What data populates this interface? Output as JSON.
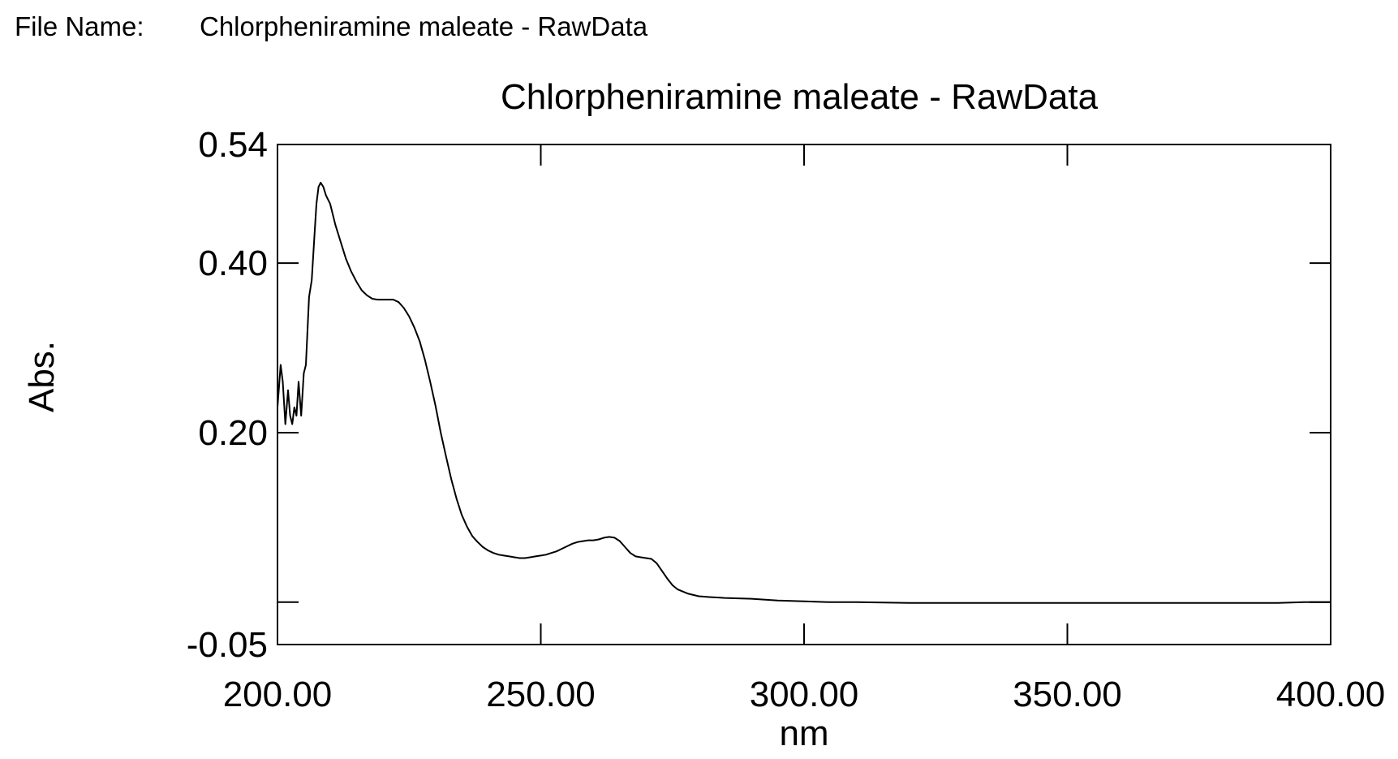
{
  "header": {
    "file_name_label": "File Name:",
    "file_name_value": "Chlorpheniramine maleate - RawData"
  },
  "chart_data": {
    "type": "line",
    "title": "Chlorpheniramine maleate - RawData",
    "xlabel": "nm",
    "ylabel": "Abs.",
    "xlim": [
      200.0,
      400.0
    ],
    "ylim": [
      -0.05,
      0.54
    ],
    "x_ticks": [
      200.0,
      250.0,
      300.0,
      350.0,
      400.0
    ],
    "x_tick_labels": [
      "200.00",
      "250.00",
      "300.00",
      "350.00",
      "400.00"
    ],
    "y_ticks": [
      0.54,
      0.4,
      0.2,
      0.0,
      -0.05
    ],
    "y_tick_labels": [
      "0.54",
      "0.40",
      "0.20",
      "",
      "-0.05"
    ],
    "grid": false,
    "line_color": "#000000",
    "series": [
      {
        "x": [
          200.0,
          200.6,
          201.0,
          201.5,
          202.0,
          202.4,
          202.8,
          203.2,
          203.6,
          204.0,
          204.5,
          205.0,
          205.4,
          206.0,
          206.5,
          207.0,
          207.4,
          207.8,
          208.2,
          208.7,
          209.2,
          210.0,
          211.0,
          212.0,
          213.0,
          214.0,
          215.0,
          216.0,
          217.0,
          218.0,
          219.0,
          220.0,
          221.0,
          222.0,
          223.0,
          224.0,
          225.0,
          226.0,
          227.0,
          228.0,
          229.0,
          230.0,
          231.0,
          232.0,
          233.0,
          234.0,
          235.0,
          236.0,
          237.0,
          238.0,
          239.0,
          240.0,
          241.0,
          242.0,
          243.0,
          244.0,
          245.0,
          246.0,
          247.0,
          248.0,
          249.0,
          250.0,
          251.0,
          252.0,
          253.0,
          254.0,
          255.0,
          256.0,
          257.0,
          258.0,
          259.0,
          260.0,
          261.0,
          262.0,
          263.0,
          264.0,
          265.0,
          266.0,
          267.0,
          268.0,
          269.0,
          270.0,
          271.0,
          272.0,
          273.0,
          274.0,
          275.0,
          276.0,
          278.0,
          280.0,
          282.0,
          285.0,
          290.0,
          295.0,
          300.0,
          305.0,
          310.0,
          320.0,
          330.0,
          340.0,
          350.0,
          360.0,
          370.0,
          380.0,
          390.0,
          395.0,
          400.0
        ],
        "y": [
          0.23,
          0.28,
          0.26,
          0.21,
          0.25,
          0.22,
          0.21,
          0.23,
          0.22,
          0.26,
          0.22,
          0.27,
          0.28,
          0.36,
          0.38,
          0.43,
          0.47,
          0.49,
          0.495,
          0.49,
          0.48,
          0.47,
          0.445,
          0.425,
          0.405,
          0.39,
          0.378,
          0.368,
          0.362,
          0.358,
          0.357,
          0.357,
          0.357,
          0.357,
          0.354,
          0.347,
          0.337,
          0.324,
          0.308,
          0.286,
          0.26,
          0.232,
          0.2,
          0.172,
          0.145,
          0.122,
          0.103,
          0.089,
          0.078,
          0.071,
          0.065,
          0.061,
          0.058,
          0.056,
          0.055,
          0.054,
          0.053,
          0.052,
          0.052,
          0.053,
          0.054,
          0.055,
          0.056,
          0.058,
          0.06,
          0.063,
          0.066,
          0.069,
          0.071,
          0.072,
          0.073,
          0.073,
          0.074,
          0.076,
          0.077,
          0.076,
          0.072,
          0.065,
          0.058,
          0.054,
          0.053,
          0.052,
          0.051,
          0.046,
          0.037,
          0.028,
          0.02,
          0.015,
          0.01,
          0.007,
          0.006,
          0.005,
          0.004,
          0.002,
          0.001,
          0.0,
          0.0,
          -0.001,
          -0.001,
          -0.001,
          -0.001,
          -0.001,
          -0.001,
          -0.001,
          -0.001,
          0.0,
          0.0
        ]
      }
    ]
  }
}
